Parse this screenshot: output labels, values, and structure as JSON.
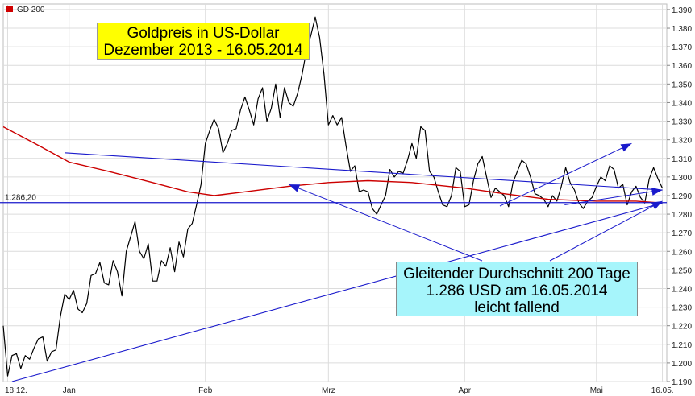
{
  "legend": {
    "label": "GD 200",
    "color": "#d00000"
  },
  "title_box": {
    "line1": "Goldpreis in US-Dollar",
    "line2": "Dezember 2013 - 16.05.2014"
  },
  "note_box": {
    "line1": "Gleitender Durchschnitt 200 Tage",
    "line2": "1.286 USD am 16.05.2014",
    "line3": "leicht fallend"
  },
  "reference_label": "1.286,20",
  "colors": {
    "price": "#000000",
    "sma": "#cc0000",
    "trend": "#1a1acc",
    "reference": "#1a1acc",
    "grid": "#dcdcdc"
  },
  "chart_data": {
    "type": "line",
    "ylim": [
      1190,
      1393
    ],
    "y_ticks": [
      "1.190",
      "1.200",
      "1.210",
      "1.220",
      "1.230",
      "1.240",
      "1.250",
      "1.260",
      "1.270",
      "1.280",
      "1.290",
      "1.300",
      "1.310",
      "1.320",
      "1.330",
      "1.340",
      "1.350",
      "1.360",
      "1.370",
      "1.380",
      "1.390"
    ],
    "y_tick_values": [
      1190,
      1200,
      1210,
      1220,
      1230,
      1240,
      1250,
      1260,
      1270,
      1280,
      1290,
      1300,
      1310,
      1320,
      1330,
      1340,
      1350,
      1360,
      1370,
      1380,
      1390
    ],
    "x_ticks": [
      "18.12.",
      "Jan",
      "Feb",
      "Mrz",
      "Apr",
      "Mai",
      "16.05."
    ],
    "x_tick_dates": [
      "2013-12-18",
      "2014-01-01",
      "2014-02-01",
      "2014-03-01",
      "2014-04-01",
      "2014-05-01",
      "2014-05-16"
    ],
    "x_range": [
      "2013-12-17",
      "2014-05-17"
    ],
    "grid": true,
    "series": [
      {
        "name": "",
        "color": "#000000",
        "points": [
          [
            "2013-12-17",
            1220
          ],
          [
            "2013-12-18",
            1193
          ],
          [
            "2013-12-19",
            1204
          ],
          [
            "2013-12-20",
            1205
          ],
          [
            "2013-12-21",
            1197
          ],
          [
            "2013-12-22",
            1204
          ],
          [
            "2013-12-23",
            1202
          ],
          [
            "2013-12-24",
            1208
          ],
          [
            "2013-12-25",
            1213
          ],
          [
            "2013-12-26",
            1214
          ],
          [
            "2013-12-27",
            1201
          ],
          [
            "2013-12-28",
            1206
          ],
          [
            "2013-12-29",
            1207
          ],
          [
            "2013-12-30",
            1225
          ],
          [
            "2013-12-31",
            1237
          ],
          [
            "2014-01-01",
            1234
          ],
          [
            "2014-01-02",
            1239
          ],
          [
            "2014-01-03",
            1229
          ],
          [
            "2014-01-04",
            1227
          ],
          [
            "2014-01-05",
            1232
          ],
          [
            "2014-01-06",
            1247
          ],
          [
            "2014-01-07",
            1248
          ],
          [
            "2014-01-08",
            1254
          ],
          [
            "2014-01-09",
            1243
          ],
          [
            "2014-01-10",
            1242
          ],
          [
            "2014-01-11",
            1255
          ],
          [
            "2014-01-12",
            1249
          ],
          [
            "2014-01-13",
            1236
          ],
          [
            "2014-01-14",
            1260
          ],
          [
            "2014-01-15",
            1268
          ],
          [
            "2014-01-16",
            1276
          ],
          [
            "2014-01-17",
            1260
          ],
          [
            "2014-01-18",
            1256
          ],
          [
            "2014-01-19",
            1264
          ],
          [
            "2014-01-20",
            1244
          ],
          [
            "2014-01-21",
            1244
          ],
          [
            "2014-01-22",
            1255
          ],
          [
            "2014-01-23",
            1252
          ],
          [
            "2014-01-24",
            1262
          ],
          [
            "2014-01-25",
            1249
          ],
          [
            "2014-01-26",
            1265
          ],
          [
            "2014-01-27",
            1257
          ],
          [
            "2014-01-28",
            1272
          ],
          [
            "2014-01-29",
            1275
          ],
          [
            "2014-01-30",
            1285
          ],
          [
            "2014-01-31",
            1296
          ],
          [
            "2014-02-01",
            1318
          ],
          [
            "2014-02-02",
            1325
          ],
          [
            "2014-02-03",
            1331
          ],
          [
            "2014-02-04",
            1326
          ],
          [
            "2014-02-05",
            1313
          ],
          [
            "2014-02-06",
            1318
          ],
          [
            "2014-02-07",
            1325
          ],
          [
            "2014-02-08",
            1326
          ],
          [
            "2014-02-09",
            1336
          ],
          [
            "2014-02-10",
            1343
          ],
          [
            "2014-02-11",
            1336
          ],
          [
            "2014-02-12",
            1328
          ],
          [
            "2014-02-13",
            1342
          ],
          [
            "2014-02-14",
            1348
          ],
          [
            "2014-02-15",
            1330
          ],
          [
            "2014-02-16",
            1337
          ],
          [
            "2014-02-17",
            1350
          ],
          [
            "2014-02-18",
            1332
          ],
          [
            "2014-02-19",
            1348
          ],
          [
            "2014-02-20",
            1340
          ],
          [
            "2014-02-21",
            1338
          ],
          [
            "2014-02-22",
            1345
          ],
          [
            "2014-02-23",
            1355
          ],
          [
            "2014-02-24",
            1368
          ],
          [
            "2014-02-25",
            1376
          ],
          [
            "2014-02-26",
            1386
          ],
          [
            "2014-02-27",
            1375
          ],
          [
            "2014-02-28",
            1355
          ],
          [
            "2014-03-01",
            1328
          ],
          [
            "2014-03-02",
            1333
          ],
          [
            "2014-03-03",
            1328
          ],
          [
            "2014-03-04",
            1332
          ],
          [
            "2014-03-05",
            1317
          ],
          [
            "2014-03-06",
            1303
          ],
          [
            "2014-03-07",
            1306
          ],
          [
            "2014-03-08",
            1292
          ],
          [
            "2014-03-09",
            1293
          ],
          [
            "2014-03-10",
            1292
          ],
          [
            "2014-03-11",
            1283
          ],
          [
            "2014-03-12",
            1280
          ],
          [
            "2014-03-13",
            1285
          ],
          [
            "2014-03-14",
            1290
          ],
          [
            "2014-03-15",
            1304
          ],
          [
            "2014-03-16",
            1300
          ],
          [
            "2014-03-17",
            1303
          ],
          [
            "2014-03-18",
            1302
          ],
          [
            "2014-03-19",
            1309
          ],
          [
            "2014-03-20",
            1318
          ],
          [
            "2014-03-21",
            1310
          ],
          [
            "2014-03-22",
            1327
          ],
          [
            "2014-03-23",
            1325
          ],
          [
            "2014-03-24",
            1303
          ],
          [
            "2014-03-25",
            1300
          ],
          [
            "2014-03-26",
            1292
          ],
          [
            "2014-03-27",
            1285
          ],
          [
            "2014-03-28",
            1284
          ],
          [
            "2014-03-29",
            1290
          ],
          [
            "2014-03-30",
            1305
          ],
          [
            "2014-03-31",
            1303
          ],
          [
            "2014-04-01",
            1284
          ],
          [
            "2014-04-02",
            1285
          ],
          [
            "2014-04-03",
            1298
          ],
          [
            "2014-04-04",
            1307
          ],
          [
            "2014-04-05",
            1311
          ],
          [
            "2014-04-06",
            1300
          ],
          [
            "2014-04-07",
            1289
          ],
          [
            "2014-04-08",
            1294
          ],
          [
            "2014-04-09",
            1292
          ],
          [
            "2014-04-10",
            1290
          ],
          [
            "2014-04-11",
            1284
          ],
          [
            "2014-04-12",
            1297
          ],
          [
            "2014-04-13",
            1303
          ],
          [
            "2014-04-14",
            1309
          ],
          [
            "2014-04-15",
            1307
          ],
          [
            "2014-04-16",
            1300
          ],
          [
            "2014-04-17",
            1291
          ],
          [
            "2014-04-18",
            1290
          ],
          [
            "2014-04-19",
            1288
          ],
          [
            "2014-04-20",
            1284
          ],
          [
            "2014-04-21",
            1290
          ],
          [
            "2014-04-22",
            1287
          ],
          [
            "2014-04-23",
            1295
          ],
          [
            "2014-04-24",
            1305
          ],
          [
            "2014-04-25",
            1297
          ],
          [
            "2014-04-26",
            1293
          ],
          [
            "2014-04-27",
            1286
          ],
          [
            "2014-04-28",
            1283
          ],
          [
            "2014-04-29",
            1287
          ],
          [
            "2014-04-30",
            1289
          ],
          [
            "2014-05-01",
            1295
          ],
          [
            "2014-05-02",
            1300
          ],
          [
            "2014-05-03",
            1298
          ],
          [
            "2014-05-04",
            1306
          ],
          [
            "2014-05-05",
            1304
          ],
          [
            "2014-05-06",
            1294
          ],
          [
            "2014-05-07",
            1296
          ],
          [
            "2014-05-08",
            1285
          ],
          [
            "2014-05-09",
            1292
          ],
          [
            "2014-05-10",
            1295
          ],
          [
            "2014-05-11",
            1289
          ],
          [
            "2014-05-12",
            1286
          ],
          [
            "2014-05-13",
            1299
          ],
          [
            "2014-05-14",
            1305
          ],
          [
            "2014-05-15",
            1299
          ],
          [
            "2014-05-16",
            1294
          ]
        ]
      },
      {
        "name": "GD 200",
        "color": "#cc0000",
        "points": [
          [
            "2013-12-17",
            1327
          ],
          [
            "2013-12-25",
            1317
          ],
          [
            "2014-01-01",
            1308
          ],
          [
            "2014-01-10",
            1303
          ],
          [
            "2014-01-20",
            1297
          ],
          [
            "2014-01-28",
            1292
          ],
          [
            "2014-02-03",
            1290
          ],
          [
            "2014-02-10",
            1292
          ],
          [
            "2014-02-20",
            1295
          ],
          [
            "2014-03-01",
            1297
          ],
          [
            "2014-03-10",
            1298
          ],
          [
            "2014-03-20",
            1297
          ],
          [
            "2014-04-01",
            1294
          ],
          [
            "2014-04-10",
            1291
          ],
          [
            "2014-04-20",
            1288
          ],
          [
            "2014-05-01",
            1287
          ],
          [
            "2014-05-10",
            1287
          ],
          [
            "2014-05-16",
            1286
          ]
        ]
      }
    ],
    "reference_line": {
      "value": 1286.2
    },
    "trend_lines": [
      {
        "from": [
          "2013-12-19",
          1190
        ],
        "to": [
          "2014-05-16",
          1286
        ]
      },
      {
        "from": [
          "2013-12-31",
          1313
        ],
        "to": [
          "2014-05-16",
          1293
        ]
      }
    ],
    "annotation_arrows": [
      {
        "to": [
          "2014-05-09",
          1318
        ]
      },
      {
        "to": [
          "2014-02-20",
          1296
        ]
      },
      {
        "to": [
          "2014-05-16",
          1287
        ]
      }
    ]
  }
}
